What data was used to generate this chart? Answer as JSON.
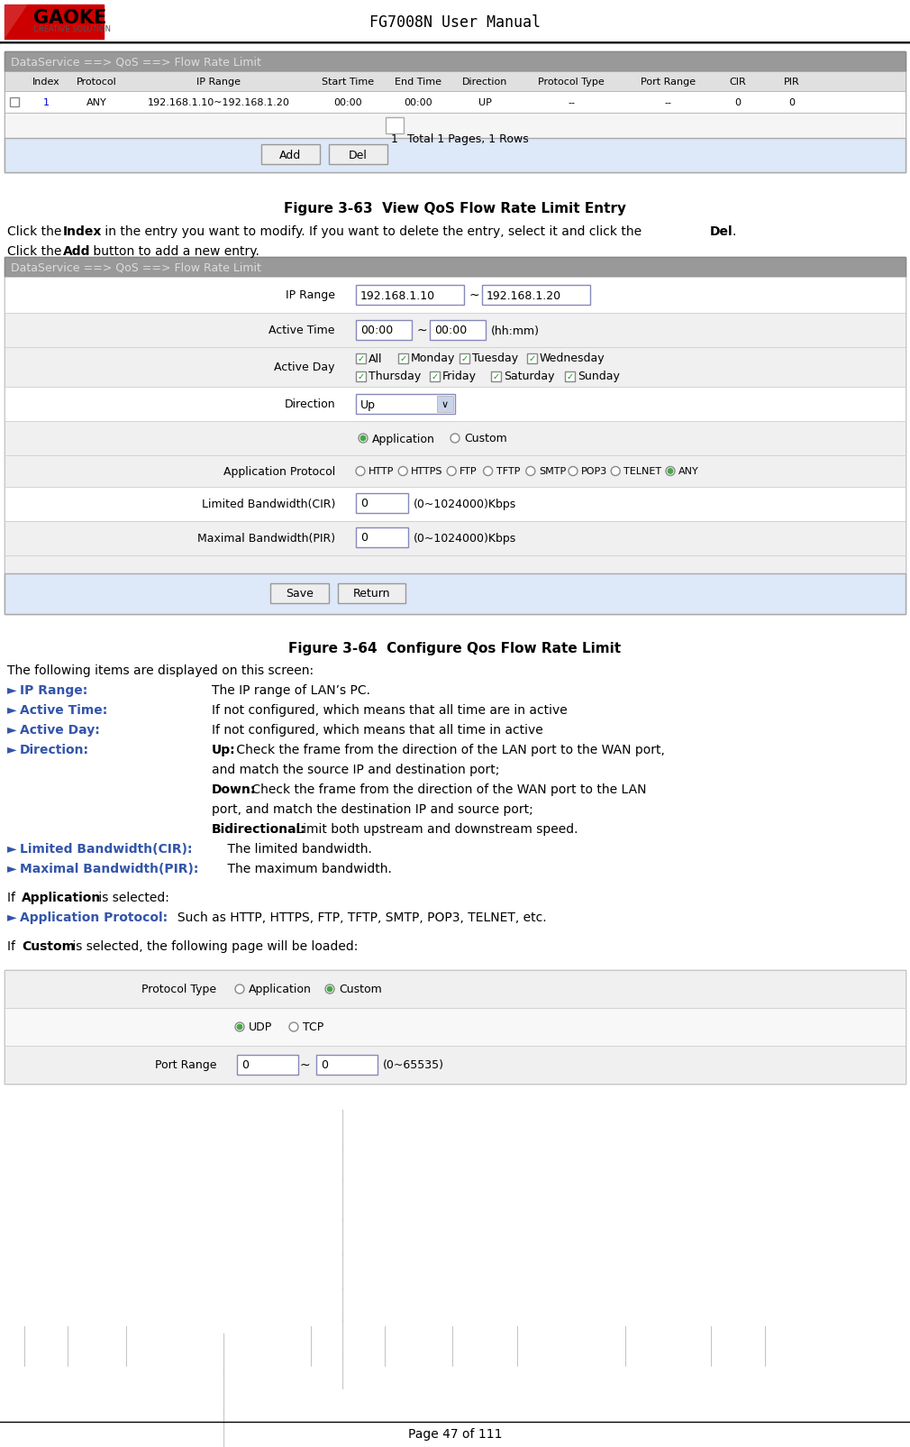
{
  "title": "FG7008N User Manual",
  "page_footer": "Page 47 of 111",
  "logo_text": "GAOKE",
  "logo_subtitle": "CREATIVE SOLUTION",
  "fig363_title": "Figure 3-63  View QoS Flow Rate Limit Entry",
  "fig364_title": "Figure 3-64  Configure Qos Flow Rate Limit",
  "desc_following": "The following items are displayed on this screen:",
  "breadcrumb1": "DataService ==> QoS ==> Flow Rate Limit",
  "breadcrumb2": "DataService ==> QoS ==> Flow Rate Limit",
  "table_headers": [
    "",
    "Index",
    "Protocol",
    "IP Range",
    "Start Time",
    "End Time",
    "Direction",
    "Protocol Type",
    "Port Range",
    "CIR",
    "PIR"
  ],
  "table_row": [
    "",
    "1",
    "ANY",
    "192.168.1.10~192.168.1.20",
    "00:00",
    "00:00",
    "UP",
    "--",
    "--",
    "0",
    "0"
  ],
  "pagination": "Total 1 Pages, 1 Rows",
  "btn_add": "Add",
  "btn_del": "Del",
  "btn_save": "Save",
  "btn_return": "Return",
  "form_fields": {
    "ip_range_val1": "192.168.1.10",
    "ip_range_val2": "192.168.1.20",
    "active_time_val1": "00:00",
    "active_time_val2": "00:00",
    "active_time_hint": "(hh:mm)",
    "active_day_items_row1": [
      "All",
      "Monday",
      "Tuesday",
      "Wednesday"
    ],
    "active_day_items_row2": [
      "Thursday",
      "Friday",
      "Saturday",
      "Sunday"
    ],
    "direction_val": "Up",
    "app_protocols": [
      "HTTP",
      "HTTPS",
      "FTP",
      "TFTP",
      "SMTP",
      "POP3",
      "TELNET",
      "ANY"
    ],
    "cir_val": "0",
    "cir_hint": "(0~1024000)Kbps",
    "pir_val": "0",
    "pir_hint": "(0~1024000)Kbps"
  },
  "bullet_items": [
    {
      "label": "IP Range:",
      "text": "The IP range of LAN’s PC."
    },
    {
      "label": "Active Time:",
      "text": "If not configured, which means that all time are in active"
    },
    {
      "label": "Active Day:",
      "text": "If not configured, which means that all time in active"
    },
    {
      "label": "Limited Bandwidth(CIR):",
      "text": "The limited bandwidth."
    },
    {
      "label": "Maximal Bandwidth(PIR):",
      "text": "The maximum bandwidth."
    }
  ],
  "app_bullet_text": "Such as HTTP, HTTPS, FTP, TFTP, SMTP, POP3, TELNET, etc.",
  "custom_form": {
    "port_val1": "0",
    "port_val2": "0",
    "port_hint": "(0~65535)"
  },
  "colors": {
    "header_bg": "#808080",
    "header_text": "#ffffff",
    "table_bg": "#ffffff",
    "table_border": "#aaaaaa",
    "form_bg": "#f0f0f0",
    "breadcrumb_bg": "#888888",
    "breadcrumb_text": "#cccccc",
    "button_bg": "#e8e8e8",
    "button_border": "#888888",
    "link_color": "#0000cc",
    "bullet_label_color": "#3355aa",
    "page_bg": "#ffffff",
    "checkbox_color": "#009900",
    "radio_selected": "#4488cc",
    "panel_footer_bg": "#dde8f8",
    "input_bg": "#ffffff",
    "input_border": "#8888bb",
    "row_white": "#ffffff",
    "row_light": "#f2f2f2",
    "separator": "#cccccc"
  }
}
